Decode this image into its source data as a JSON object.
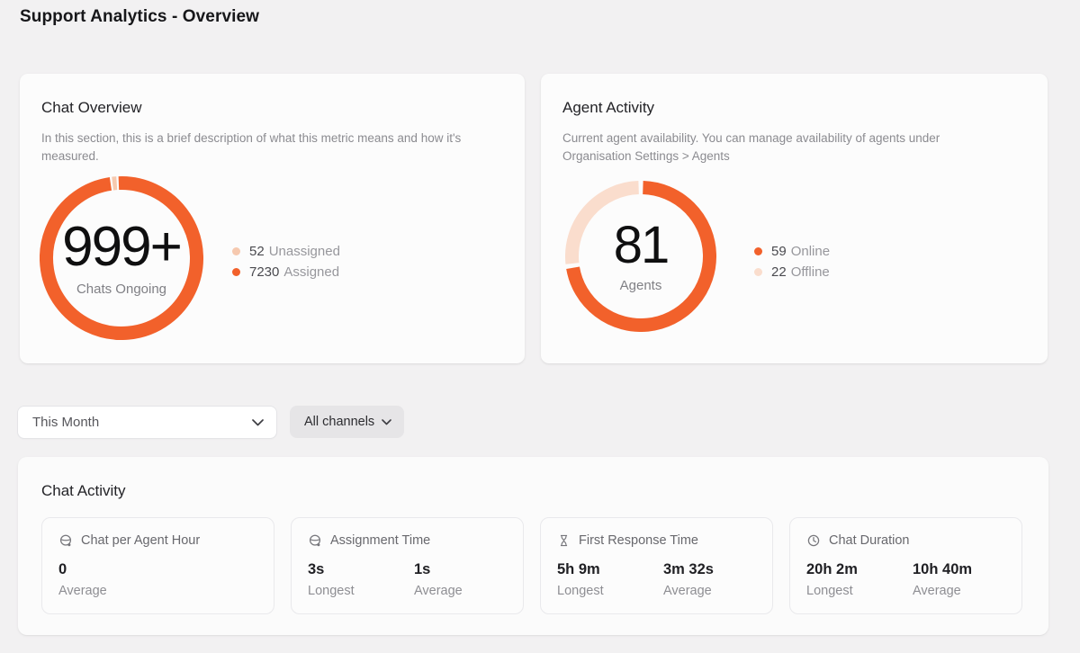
{
  "page": {
    "title": "Support Analytics - Overview"
  },
  "colors": {
    "accent": "#F2612B",
    "accent_light": "#FADDCD",
    "unassigned_dot": "#F6C9AF",
    "page_bg": "#F2F1F2",
    "card_bg": "#FCFCFC"
  },
  "chat_overview": {
    "title": "Chat Overview",
    "description": "In this section, this is a brief description of what this metric means and how it's measured.",
    "center_value": "999+",
    "center_label": "Chats Ongoing",
    "legend": [
      {
        "value": "52",
        "label": "Unassigned",
        "color": "#F6C9AF"
      },
      {
        "value": "7230",
        "label": "Assigned",
        "color": "#F2612B"
      }
    ]
  },
  "agent_activity": {
    "title": "Agent Activity",
    "description": "Current agent availability. You can manage availability of agents under Organisation Settings > Agents",
    "center_value": "81",
    "center_label": "Agents",
    "legend": [
      {
        "value": "59",
        "label": "Online",
        "color": "#F2612B"
      },
      {
        "value": "22",
        "label": "Offline",
        "color": "#FADDCD"
      }
    ]
  },
  "filters": {
    "time_range": "This Month",
    "channels": "All channels"
  },
  "chat_activity": {
    "title": "Chat Activity",
    "cards": [
      {
        "icon": "headset-icon",
        "label": "Chat per Agent Hour",
        "stats": [
          {
            "value": "0",
            "label": "Average"
          }
        ]
      },
      {
        "icon": "headset-icon",
        "label": "Assignment Time",
        "stats": [
          {
            "value": "3s",
            "label": "Longest"
          },
          {
            "value": "1s",
            "label": "Average"
          }
        ]
      },
      {
        "icon": "hourglass-icon",
        "label": "First Response Time",
        "stats": [
          {
            "value": "5h 9m",
            "label": "Longest"
          },
          {
            "value": "3m 32s",
            "label": "Average"
          }
        ]
      },
      {
        "icon": "clock-icon",
        "label": "Chat Duration",
        "stats": [
          {
            "value": "20h 2m",
            "label": "Longest"
          },
          {
            "value": "10h 40m",
            "label": "Average"
          }
        ]
      }
    ]
  },
  "chart_data": [
    {
      "type": "pie",
      "title": "Chat Overview",
      "center_value": "999+",
      "center_label": "Chats Ongoing",
      "segments": [
        {
          "name": "Unassigned",
          "value": 52,
          "color": "#F6C9AF"
        },
        {
          "name": "Assigned",
          "value": 7230,
          "color": "#F2612B"
        }
      ],
      "start_angle": -6.5,
      "legend_position": "right"
    },
    {
      "type": "pie",
      "title": "Agent Activity",
      "center_value": "81",
      "center_label": "Agents",
      "segments": [
        {
          "name": "Online",
          "value": 59,
          "color": "#F2612B"
        },
        {
          "name": "Offline",
          "value": 22,
          "color": "#FADDCD"
        }
      ],
      "start_angle": 0,
      "legend_position": "right"
    }
  ]
}
